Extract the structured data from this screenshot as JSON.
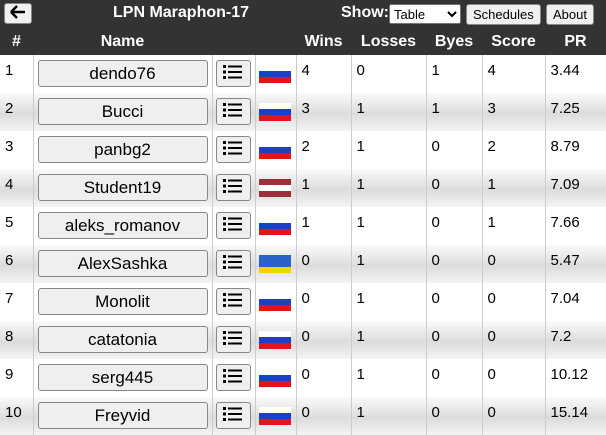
{
  "header": {
    "title": "LPN Maraphon-17",
    "show_label": "Show:",
    "view_select": "Table",
    "buttons": [
      "Schedules",
      "About"
    ]
  },
  "table": {
    "columns": [
      "#",
      "Name",
      "Wins",
      "Losses",
      "Byes",
      "Score",
      "PR"
    ],
    "rows": [
      [
        1,
        "dendo76",
        4,
        0,
        1,
        4,
        3.44
      ],
      [
        2,
        "Bucci",
        3,
        1,
        1,
        3,
        7.25
      ],
      [
        3,
        "panbg2",
        2,
        1,
        0,
        2,
        8.79
      ],
      [
        4,
        "Student19",
        1,
        1,
        0,
        1,
        7.09
      ],
      [
        5,
        "aleks_romanov",
        1,
        1,
        0,
        1,
        7.66
      ],
      [
        6,
        "AlexSashka",
        0,
        1,
        0,
        0,
        5.47
      ],
      [
        7,
        "Monolit",
        0,
        1,
        0,
        0,
        7.04
      ],
      [
        8,
        "catatonia",
        0,
        1,
        0,
        0,
        7.2
      ],
      [
        9,
        "serg445",
        0,
        1,
        0,
        0,
        10.12
      ],
      [
        10,
        "Freyvid",
        0,
        1,
        0,
        0,
        15.14
      ]
    ]
  }
}
